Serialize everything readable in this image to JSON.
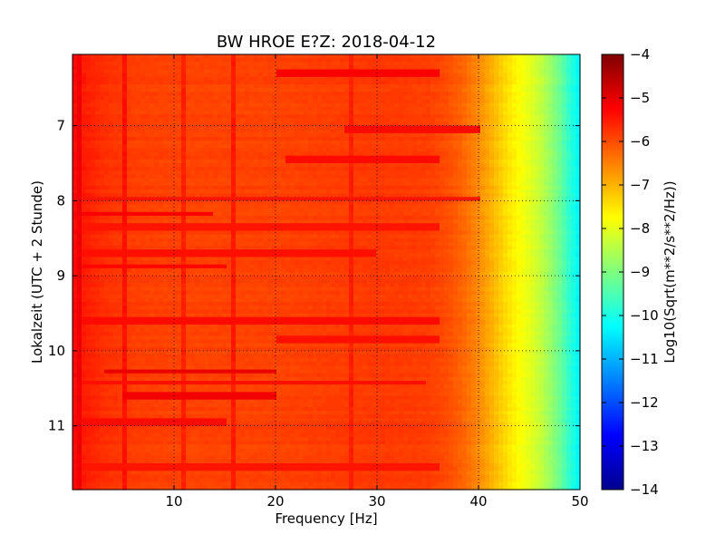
{
  "chart_data": {
    "type": "heatmap",
    "title": "BW HROE E?Z: 2018-04-12",
    "xlabel": "Frequency [Hz]",
    "ylabel": "Lokalzeit (UTC + 2 Stunde)",
    "xlim": [
      0,
      50
    ],
    "ylim": [
      6.05,
      11.85
    ],
    "y_inverted": true,
    "x_ticks": [
      10,
      20,
      30,
      40,
      50
    ],
    "y_ticks": [
      7,
      8,
      9,
      10,
      11
    ],
    "grid": true,
    "colorbar": {
      "label": "Log10(Sqrt(m**2/s**2/Hz))",
      "range": [
        -14,
        -4
      ],
      "ticks": [
        -4,
        -5,
        -6,
        -7,
        -8,
        -9,
        -10,
        -11,
        -12,
        -13,
        -14
      ],
      "colormap": "jet"
    },
    "frequency_profile": {
      "x": [
        0,
        1,
        3,
        6,
        10,
        15,
        20,
        25,
        30,
        35,
        37,
        38.5,
        40,
        41,
        42,
        43,
        44,
        45,
        46,
        47,
        48,
        49,
        50
      ],
      "values": [
        -5.3,
        -5.5,
        -5.7,
        -5.85,
        -5.9,
        -5.9,
        -5.9,
        -5.85,
        -5.8,
        -5.85,
        -6.0,
        -6.25,
        -6.6,
        -6.9,
        -7.2,
        -7.5,
        -7.75,
        -8.0,
        -8.3,
        -8.7,
        -9.2,
        -9.8,
        -10.4
      ]
    },
    "bands": [
      {
        "time": 6.3,
        "x_from": 20,
        "x_to": 36,
        "value": -5.2
      },
      {
        "time": 7.05,
        "x_from": 27,
        "x_to": 40,
        "value": -5.35
      },
      {
        "time": 7.45,
        "x_from": 21,
        "x_to": 36,
        "value": -5.35
      },
      {
        "time": 7.98,
        "x_from": 0,
        "x_to": 40,
        "value": -5.45
      },
      {
        "time": 8.17,
        "x_from": 0,
        "x_to": 14,
        "value": -5.2
      },
      {
        "time": 8.35,
        "x_from": 0,
        "x_to": 36,
        "value": -5.45
      },
      {
        "time": 8.7,
        "x_from": 0,
        "x_to": 30,
        "value": -5.4
      },
      {
        "time": 8.88,
        "x_from": 0,
        "x_to": 15,
        "value": -5.3
      },
      {
        "time": 9.6,
        "x_from": 0,
        "x_to": 36,
        "value": -5.35
      },
      {
        "time": 9.85,
        "x_from": 20,
        "x_to": 36,
        "value": -5.4
      },
      {
        "time": 10.28,
        "x_from": 3,
        "x_to": 20,
        "value": -5.05
      },
      {
        "time": 10.42,
        "x_from": 0,
        "x_to": 35,
        "value": -5.4
      },
      {
        "time": 10.6,
        "x_from": 5,
        "x_to": 20,
        "value": -5.15
      },
      {
        "time": 10.95,
        "x_from": 0,
        "x_to": 15,
        "value": -5.35
      },
      {
        "time": 11.55,
        "x_from": 0,
        "x_to": 36,
        "value": -5.45
      }
    ],
    "lines": [
      {
        "freq": 0.5,
        "value": -5.1
      },
      {
        "freq": 5,
        "value": -5.4
      },
      {
        "freq": 11,
        "value": -5.55
      },
      {
        "freq": 16,
        "value": -5.5
      },
      {
        "freq": 27.5,
        "value": -5.55
      }
    ]
  }
}
